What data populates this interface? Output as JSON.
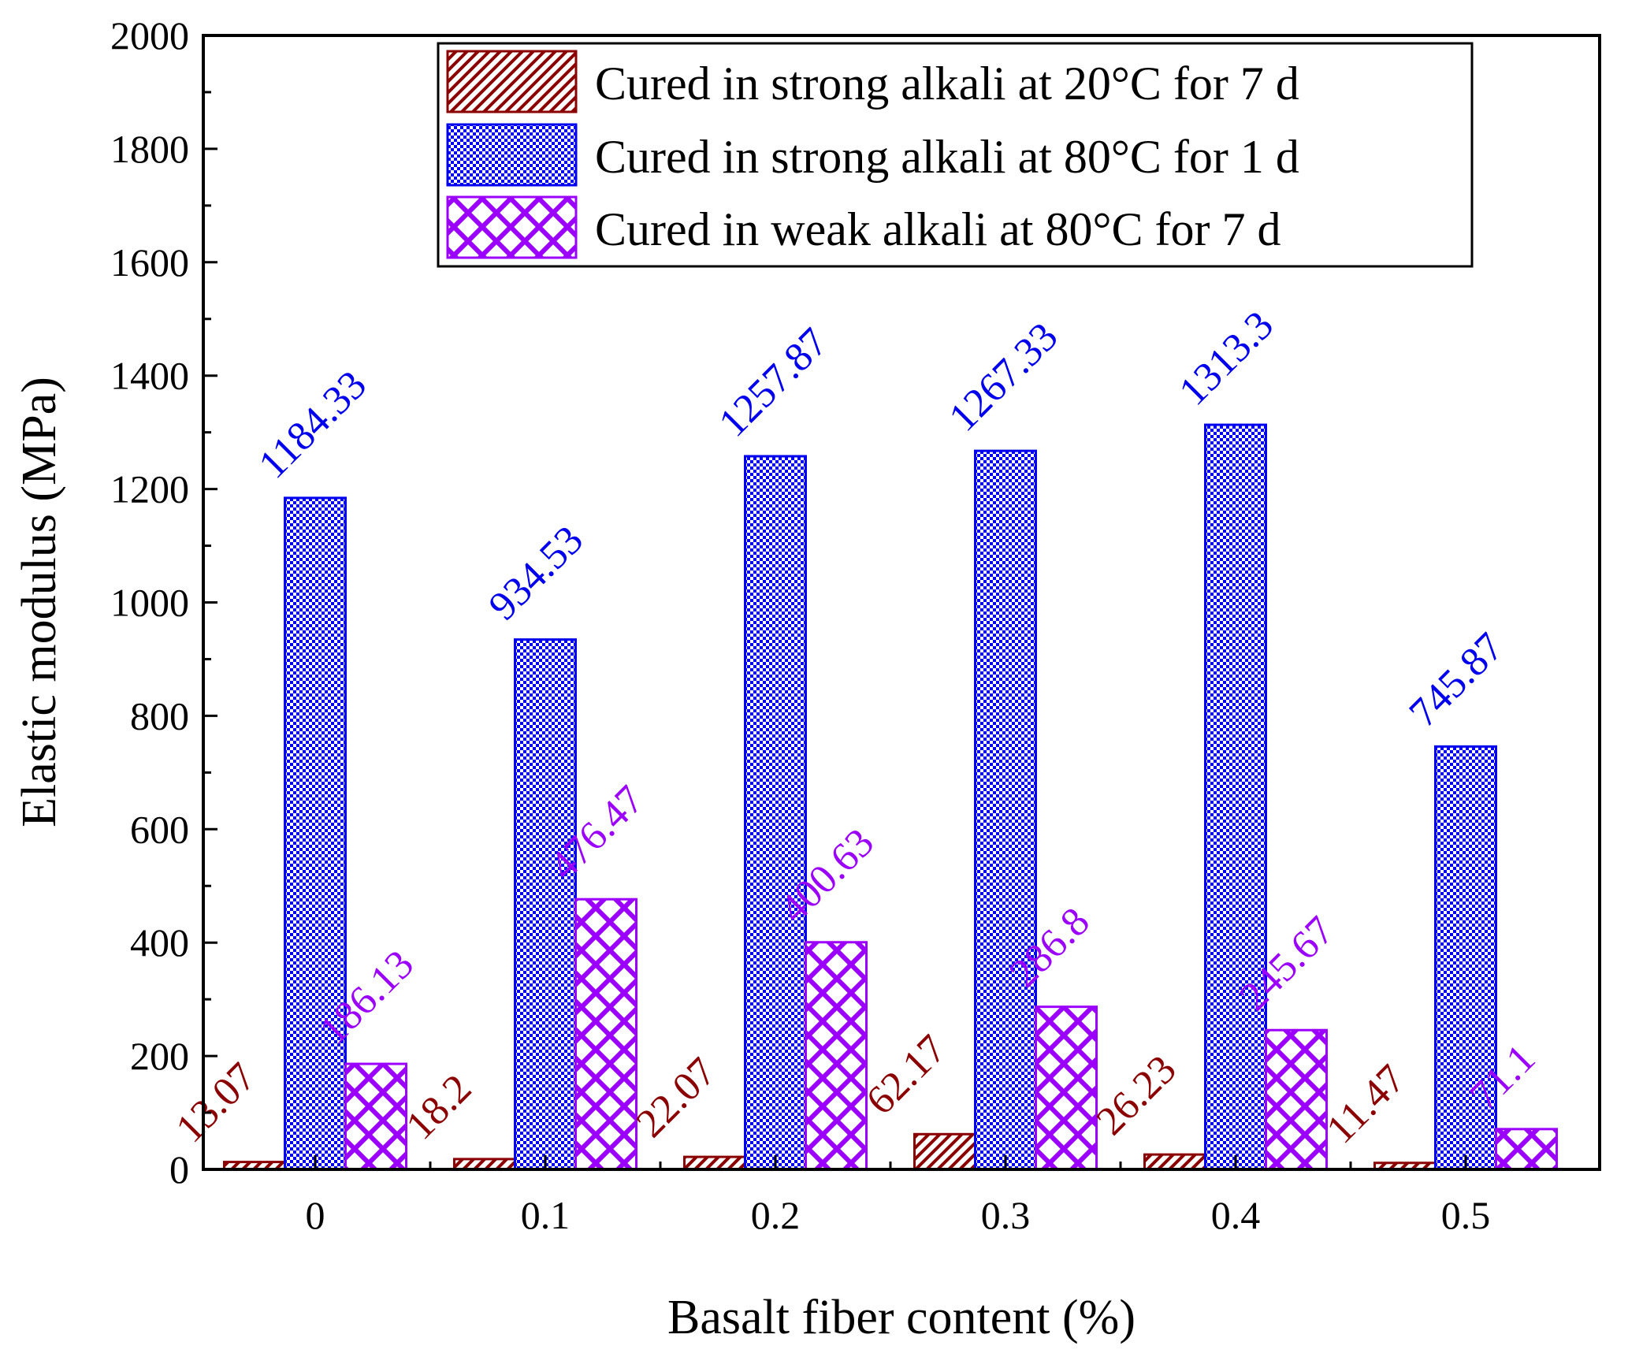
{
  "chart_data": {
    "type": "bar",
    "xlabel": "Basalt fiber content (%)",
    "ylabel": "Elastic modulus (MPa)",
    "ylim": [
      0,
      2000
    ],
    "yticks": [
      "0",
      "200",
      "400",
      "600",
      "800",
      "1000",
      "1200",
      "1400",
      "1600",
      "1800",
      "2000"
    ],
    "categories": [
      "0",
      "0.1",
      "0.2",
      "0.3",
      "0.4",
      "0.5"
    ],
    "legend_position": "top-right",
    "series": [
      {
        "name": "Cured in strong alkali at 20°C for 7 d",
        "color": "#8b0000",
        "pattern": "diagonal-hatch",
        "values": [
          13.07,
          18.2,
          22.07,
          62.17,
          26.23,
          11.47
        ],
        "labels": [
          "13.07",
          "18.2",
          "22.07",
          "62.17",
          "26.23",
          "11.47"
        ]
      },
      {
        "name": "Cured in strong alkali at 80°C for 1 d",
        "color": "#0000ee",
        "pattern": "dot-grid",
        "values": [
          1184.33,
          934.53,
          1257.87,
          1267.33,
          1313.3,
          745.87
        ],
        "labels": [
          "1184.33",
          "934.53",
          "1257.87",
          "1267.33",
          "1313.3",
          "745.87"
        ]
      },
      {
        "name": "Cured in weak alkali at 80°C for 7 d",
        "color": "#9b00ff",
        "pattern": "cross-hatch",
        "values": [
          186.13,
          476.47,
          400.63,
          286.8,
          245.67,
          71.1
        ],
        "labels": [
          "186.13",
          "476.47",
          "400.63",
          "286.8",
          "245.67",
          "71.1"
        ]
      }
    ]
  }
}
